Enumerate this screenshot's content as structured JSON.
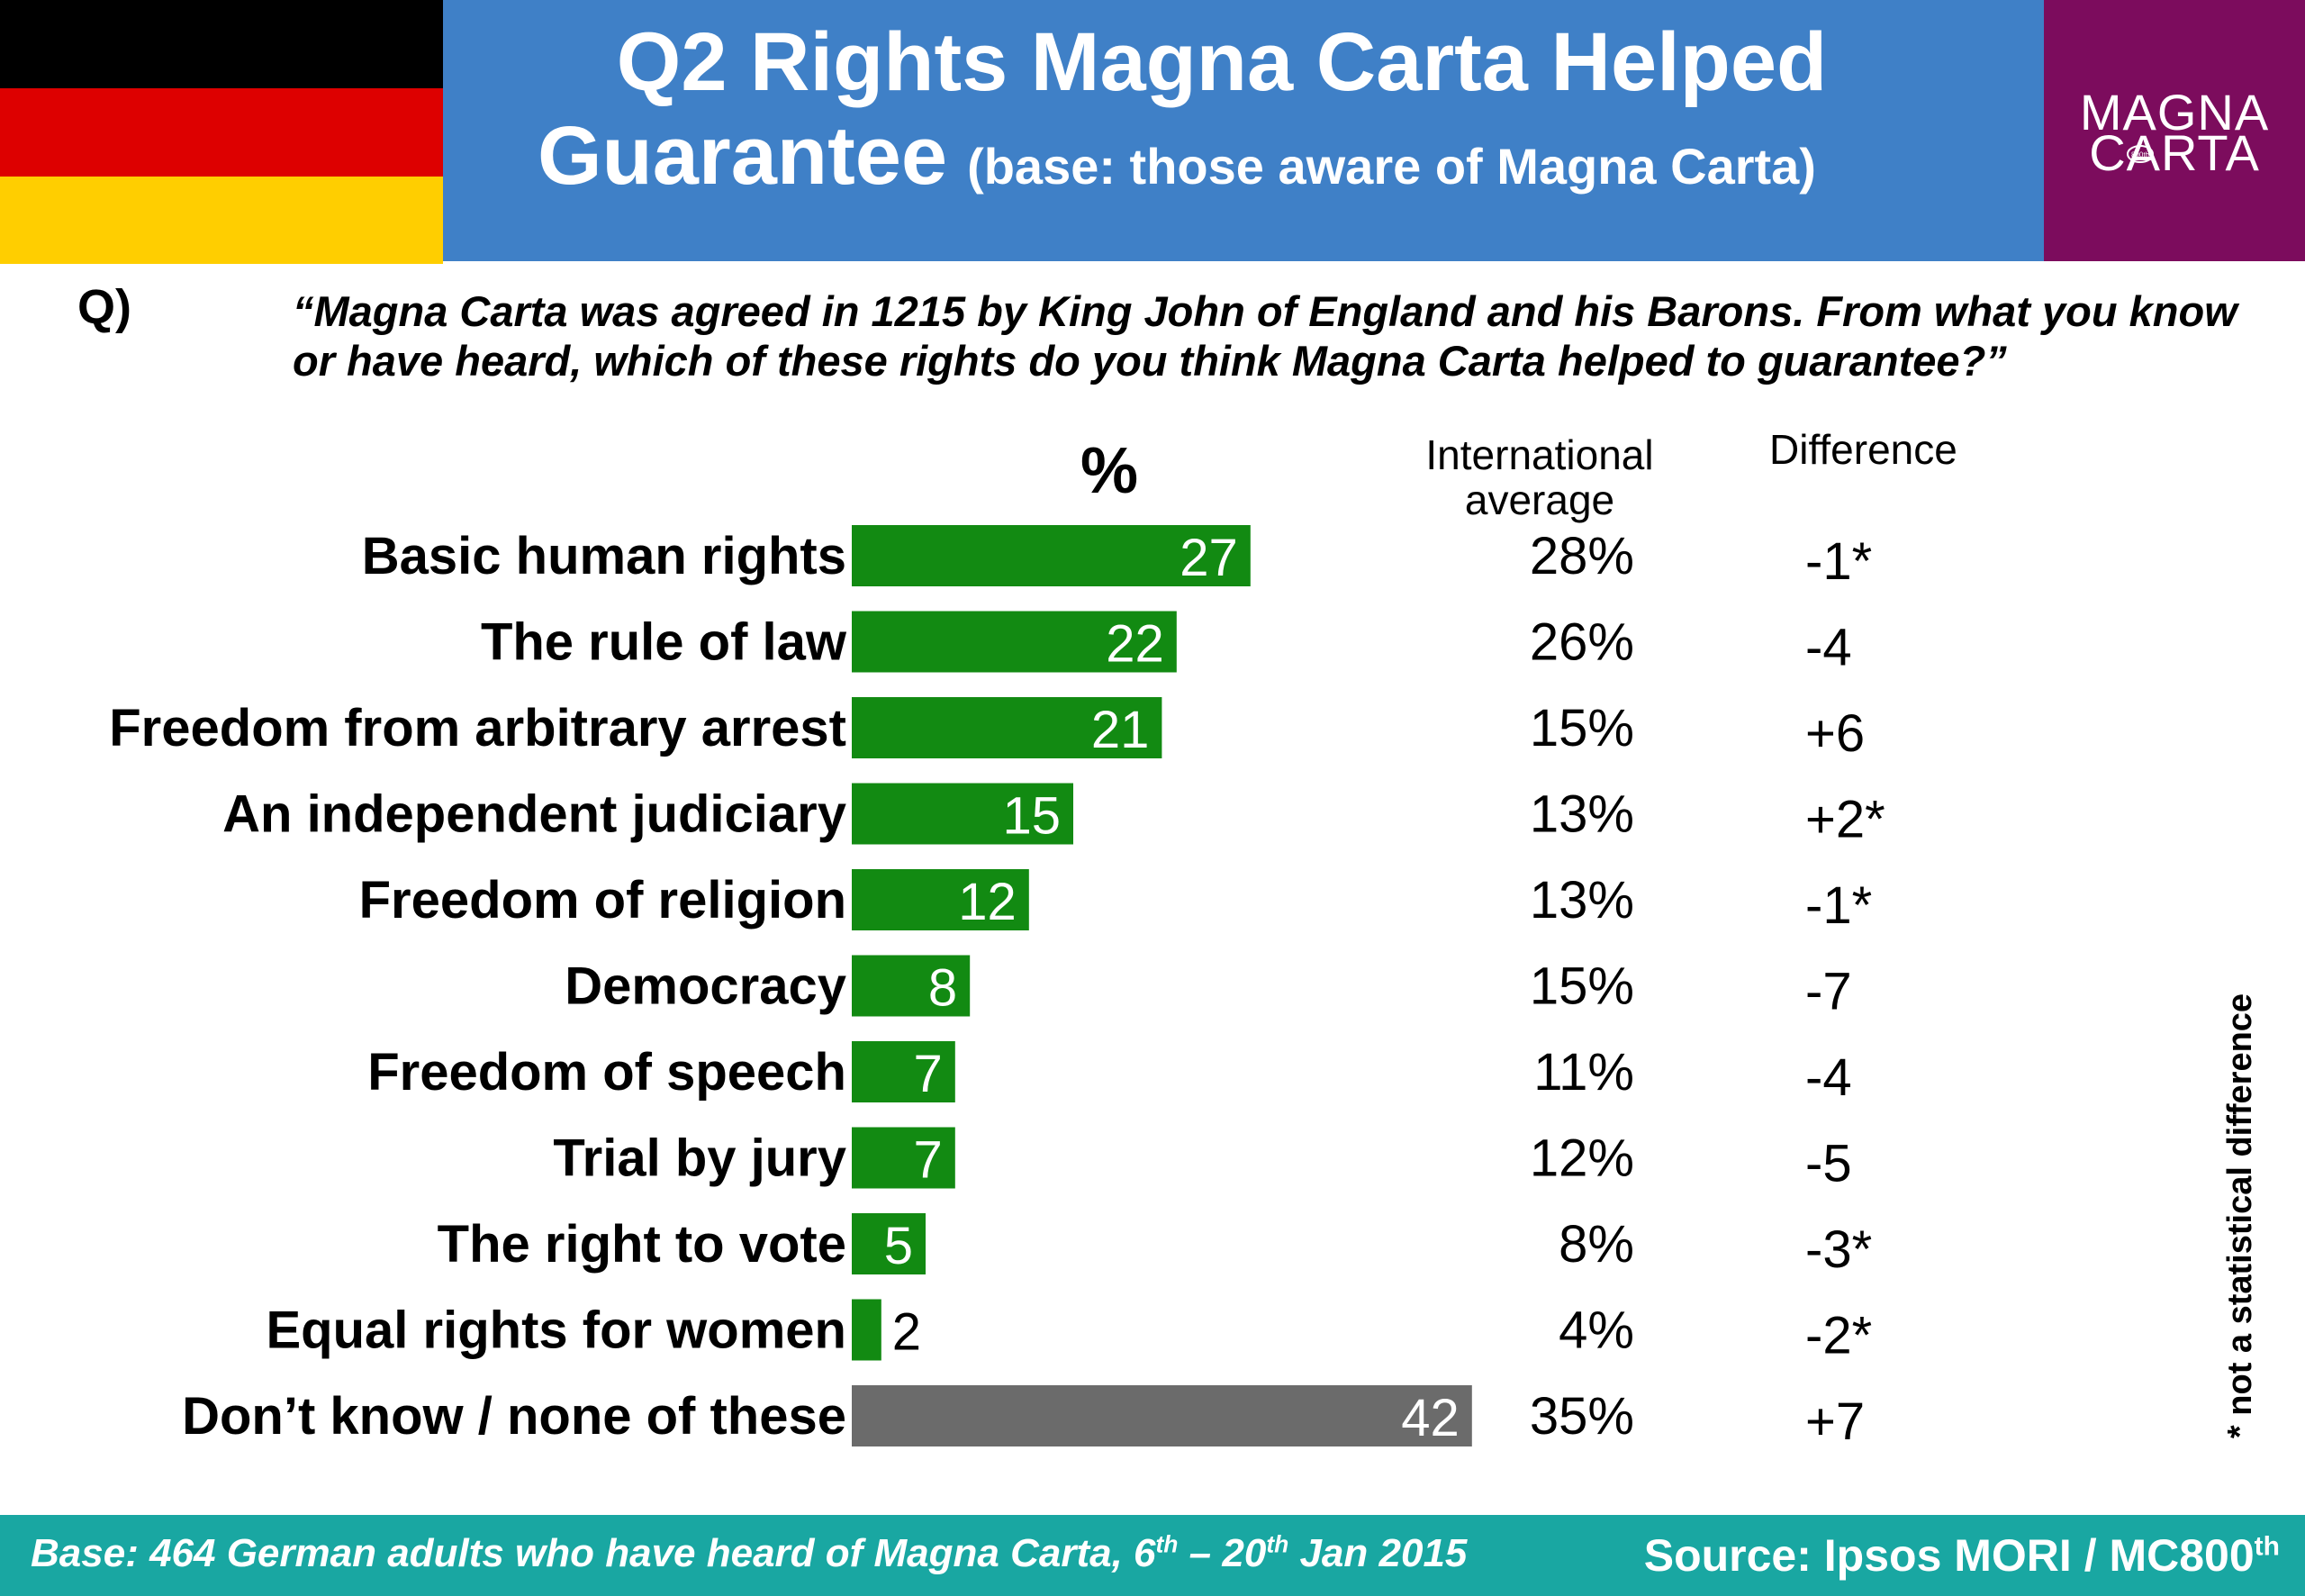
{
  "header": {
    "title_line1": "Q2 Rights Magna Carta Helped",
    "title_line2": "Guarantee",
    "title_sub": "(base: those aware of Magna Carta)",
    "flag_colors": [
      "#000000",
      "#dd0000",
      "#ffce00"
    ],
    "bg_color": "#3f80c7",
    "logo": {
      "line1": "MAGNA",
      "line2": "CARTA",
      "emblem_text": "800th",
      "bg_color": "#7c0c5d"
    }
  },
  "question": {
    "label": "Q)",
    "text": "“Magna Carta was agreed in 1215 by King John of England and his Barons. From what you know or have heard, which of these rights do you think Magna Carta helped to guarantee?”"
  },
  "columns": {
    "percent": "%",
    "international_line1": "International",
    "international_line2": "average",
    "difference": "Difference"
  },
  "chart_data": {
    "type": "bar",
    "orientation": "horizontal",
    "categories": [
      "Basic human rights",
      "The rule of law",
      "Freedom from arbitrary arrest",
      "An independent judiciary",
      "Freedom of religion",
      "Democracy",
      "Freedom of speech",
      "Trial by jury",
      "The right to vote",
      "Equal rights for women",
      "Don’t know / none of these"
    ],
    "values": [
      27,
      22,
      21,
      15,
      12,
      8,
      7,
      7,
      5,
      2,
      42
    ],
    "value_labels": [
      "27",
      "22",
      "21",
      "15",
      "12",
      "8",
      "7",
      "7",
      "5",
      "2",
      "42"
    ],
    "international_average": [
      "28%",
      "26%",
      "15%",
      "13%",
      "13%",
      "15%",
      "11%",
      "12%",
      "8%",
      "4%",
      "35%"
    ],
    "difference": [
      "-1*",
      "-4",
      "+6",
      "+2*",
      "-1*",
      "-7",
      "-4",
      "-5",
      "-3*",
      "-2*",
      "+7"
    ],
    "bar_colors": [
      "#128a12",
      "#128a12",
      "#128a12",
      "#128a12",
      "#128a12",
      "#128a12",
      "#128a12",
      "#128a12",
      "#128a12",
      "#128a12",
      "#6b6b6b"
    ],
    "xlim": [
      0,
      42
    ],
    "grid": false,
    "legend": "none"
  },
  "note": "* not a statistical difference",
  "footer": {
    "base_pre": "Base: 464 German adults who have heard of Magna Carta, 6",
    "base_sup1": "th",
    "base_mid": " – 20",
    "base_sup2": "th",
    "base_post": " Jan 2015",
    "source": "Source: Ipsos MORI / MC800",
    "source_sup": "th",
    "bg_color": "#19a7a2"
  }
}
